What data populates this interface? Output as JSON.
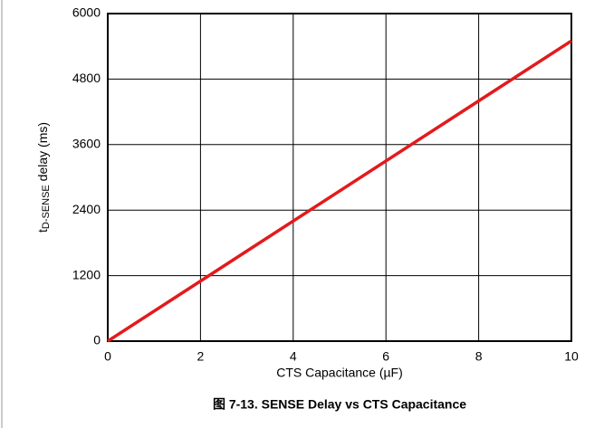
{
  "chart_data": {
    "type": "line",
    "title": "图 7-13. SENSE Delay vs CTS Capacitance",
    "xlabel": "CTS Capacitance (µF)",
    "ylabel": {
      "main": "t",
      "sub": "D-SENSE",
      "rest": " delay (ms)"
    },
    "x": [
      0,
      10
    ],
    "series": [
      {
        "name": "SENSE delay",
        "color": "#e31a1c",
        "values": [
          0,
          5500
        ]
      }
    ],
    "xlim": [
      0,
      10
    ],
    "xticks": [
      0,
      2,
      4,
      6,
      8,
      10
    ],
    "ylim": [
      0,
      6000
    ],
    "yticks": [
      0,
      1200,
      2400,
      3600,
      4800,
      6000
    ],
    "grid": true
  }
}
